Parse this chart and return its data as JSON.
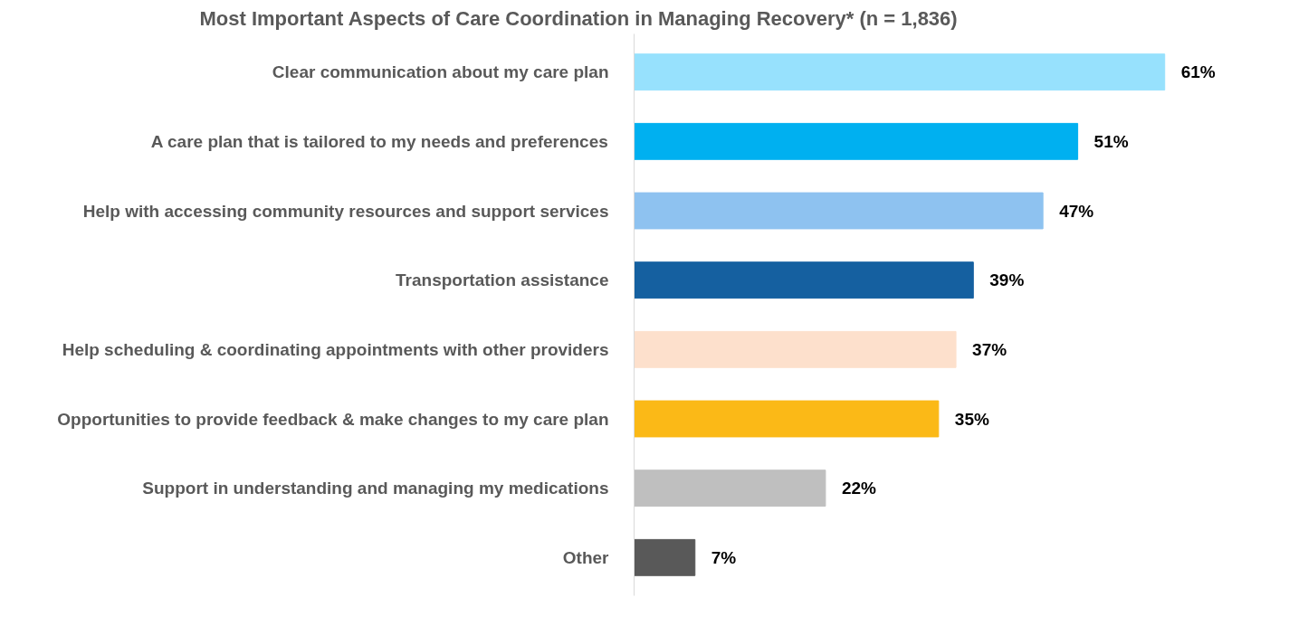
{
  "chart_data": {
    "type": "bar",
    "orientation": "horizontal",
    "title": "Most Important Aspects of Care Coordination in Managing Recovery* (n = 1,836)",
    "categories": [
      "Clear communication about my care plan",
      "A care plan that is tailored to my needs and preferences",
      "Help with accessing community resources and support services",
      "Transportation assistance",
      "Help scheduling & coordinating appointments with other providers",
      "Opportunities to provide feedback & make changes to my care plan",
      "Support in understanding and managing my medications",
      "Other"
    ],
    "values": [
      61,
      51,
      47,
      39,
      37,
      35,
      22,
      7
    ],
    "colors": [
      "#97e1fd",
      "#00b0f0",
      "#8ec2f0",
      "#1560a0",
      "#fde0cc",
      "#fbb917",
      "#bfbfbf",
      "#595959"
    ],
    "value_labels": [
      "61%",
      "51%",
      "47%",
      "39%",
      "37%",
      "35%",
      "22%",
      "7%"
    ],
    "grid": false
  }
}
